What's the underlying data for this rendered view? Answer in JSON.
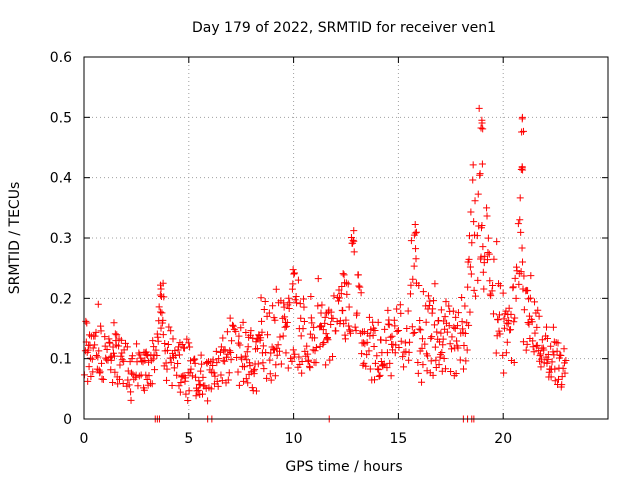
{
  "chart_data": {
    "type": "scatter",
    "title": "Day 179 of 2022, SRMTID for receiver ven1",
    "xlabel": "GPS time / hours",
    "ylabel": "SRMTID / TECUs",
    "xlim": [
      0,
      25
    ],
    "ylim": [
      0,
      0.6
    ],
    "grid": true,
    "x_ticks": [
      0,
      5,
      10,
      15,
      20
    ],
    "x_tick_labels": [
      "0",
      "5",
      "10",
      "15",
      "20"
    ],
    "y_ticks": [
      0,
      0.1,
      0.2,
      0.3,
      0.4,
      0.5,
      0.6
    ],
    "y_tick_labels": [
      "0",
      "0.1",
      "0.2",
      "0.3",
      "0.4",
      "0.5",
      "0.6"
    ],
    "colors": {
      "series": "#ff0000",
      "grid": "#a0a0a0",
      "axes": "#000000"
    },
    "marker": "plus",
    "series": [
      {
        "name": "SRMTID",
        "profile_hour": [
          0,
          0.5,
          1,
          1.5,
          2,
          2.5,
          3,
          3.5,
          3.7,
          4,
          4.5,
          5,
          5.5,
          6,
          6.5,
          7,
          7.5,
          8,
          8.5,
          9,
          9.5,
          10,
          10.5,
          11,
          11.5,
          12,
          12.5,
          12.8,
          13,
          13.5,
          14,
          14.5,
          15,
          15.5,
          15.8,
          16,
          16.5,
          17,
          17.5,
          18,
          18.3,
          18.5,
          18.8,
          19,
          19.3,
          19.5,
          20,
          20.5,
          20.9,
          21,
          21.5,
          22,
          22.5,
          23
        ],
        "profile_value": [
          0.11,
          0.1,
          0.12,
          0.1,
          0.08,
          0.07,
          0.09,
          0.12,
          0.16,
          0.11,
          0.09,
          0.08,
          0.07,
          0.07,
          0.09,
          0.12,
          0.11,
          0.1,
          0.12,
          0.13,
          0.14,
          0.15,
          0.14,
          0.14,
          0.13,
          0.15,
          0.17,
          0.22,
          0.17,
          0.13,
          0.11,
          0.12,
          0.12,
          0.14,
          0.22,
          0.12,
          0.15,
          0.14,
          0.13,
          0.13,
          0.18,
          0.28,
          0.38,
          0.32,
          0.26,
          0.18,
          0.14,
          0.13,
          0.3,
          0.2,
          0.14,
          0.1,
          0.09,
          0.07
        ],
        "peaks": [
          [
            15.8,
            0.33
          ],
          [
            19.0,
            0.5
          ],
          [
            20.9,
            0.5
          ],
          [
            20.9,
            0.44
          ],
          [
            12.8,
            0.32
          ],
          [
            10.0,
            0.25
          ],
          [
            3.7,
            0.23
          ]
        ],
        "data_gaps_hour": [
          3.4,
          3.5,
          3.6,
          5.9,
          6.1,
          11.7,
          18.1,
          18.3,
          18.5,
          18.6
        ],
        "data_gaps_value": 0
      }
    ]
  }
}
